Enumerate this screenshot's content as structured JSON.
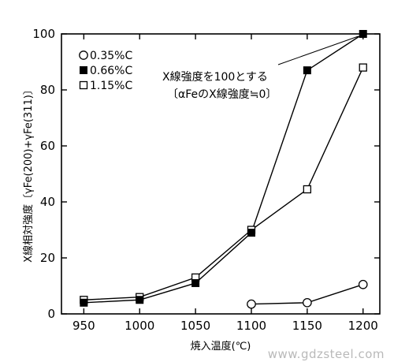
{
  "chart_data": {
    "type": "line",
    "title": "",
    "xlabel": "焼入温度(℃)",
    "ylabel": "X線相対強度〔γFe(200)+γFe(311)〕",
    "x": [
      950,
      1000,
      1050,
      1100,
      1150,
      1200
    ],
    "xlim": [
      930,
      1215
    ],
    "ylim": [
      0,
      100
    ],
    "xticks": [
      "950",
      "1000",
      "1050",
      "1100",
      "1150",
      "1200"
    ],
    "yticks": [
      "0",
      "20",
      "40",
      "60",
      "80",
      "100"
    ],
    "grid": false,
    "legend_position": "top-left",
    "series": [
      {
        "name": "0.35%C",
        "marker": "open-circle",
        "points": [
          [
            1100,
            3.5
          ],
          [
            1150,
            4.0
          ],
          [
            1200,
            10.5
          ]
        ]
      },
      {
        "name": "0.66%C",
        "marker": "filled-square",
        "points": [
          [
            950,
            4.0
          ],
          [
            1000,
            5.0
          ],
          [
            1050,
            11.0
          ],
          [
            1100,
            29.0
          ],
          [
            1150,
            87.0
          ],
          [
            1200,
            100.0
          ]
        ]
      },
      {
        "name": "1.15%C",
        "marker": "open-square",
        "points": [
          [
            950,
            5.0
          ],
          [
            1000,
            6.0
          ],
          [
            1050,
            13.0
          ],
          [
            1100,
            30.0
          ],
          [
            1150,
            44.5
          ],
          [
            1200,
            88.0
          ]
        ]
      }
    ],
    "annotation": {
      "lines": [
        "X線強度を100とする",
        "〔αFeのX線強度≒0〕"
      ],
      "points_to": [
        1200,
        100
      ]
    },
    "colors": {
      "marker_fill_filled": "#000000",
      "marker_fill_open": "#ffffff",
      "line": "#000000"
    }
  },
  "watermark": "www.gdzsteel.com"
}
